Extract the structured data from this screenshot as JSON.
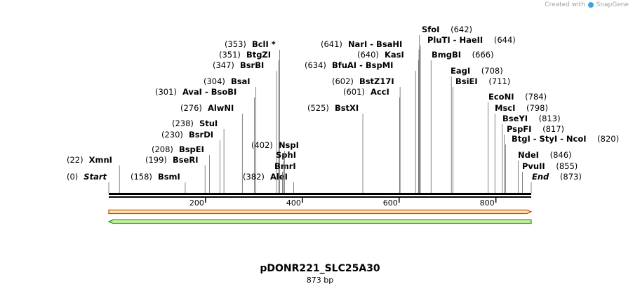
{
  "credit": {
    "prefix": "Created with",
    "brand": "SnapGene"
  },
  "plasmid": {
    "name": "pDONR221_SLC25A30",
    "size_label": "873 bp",
    "length": 873
  },
  "ruler": {
    "ticks": [
      200,
      400,
      600,
      800
    ]
  },
  "features": [
    {
      "name": "forward-feature",
      "direction": "forward",
      "start": 0,
      "end": 873,
      "fill": "#fbe7a6",
      "stroke": "#d24b17"
    },
    {
      "name": "reverse-feature",
      "direction": "reverse",
      "start": 0,
      "end": 873,
      "fill": "#c9f0a0",
      "stroke": "#2e9a1e"
    }
  ],
  "sites": [
    {
      "label": "Start",
      "pos": 0,
      "italic": true
    },
    {
      "label": "XmnI",
      "pos": 22
    },
    {
      "label": "BsmI",
      "pos": 158
    },
    {
      "label": "BseRI",
      "pos": 199
    },
    {
      "label": "BspEI",
      "pos": 208
    },
    {
      "label": "BsrDI",
      "pos": 230
    },
    {
      "label": "StuI",
      "pos": 238
    },
    {
      "label": "AlwNI",
      "pos": 276
    },
    {
      "label": "AvaI  - BsoBI",
      "pos": 301
    },
    {
      "label": "BsaI",
      "pos": 304
    },
    {
      "label": "BsrBI",
      "pos": 347
    },
    {
      "label": "BtgZI",
      "pos": 351
    },
    {
      "label": "BclI *",
      "pos": 353
    },
    {
      "label": "AleI",
      "pos": 382
    },
    {
      "label": "BmrI",
      "pos": null,
      "cut": 359
    },
    {
      "label": "SphI",
      "pos": null,
      "cut": 361
    },
    {
      "label": "NspI",
      "pos": 402,
      "cut": 363
    },
    {
      "label": "BstXI",
      "pos": 525
    },
    {
      "label": "AccI",
      "pos": 601
    },
    {
      "label": "BstZ17I",
      "pos": 602
    },
    {
      "label": "BfuAI  - BspMI",
      "pos": 634
    },
    {
      "label": "KasI",
      "pos": 640
    },
    {
      "label": "NarI  - BsaHI",
      "pos": 641
    },
    {
      "label": "SfoI",
      "pos": 642
    },
    {
      "label": "PluTI  - HaeII",
      "pos": 644
    },
    {
      "label": "BmgBI",
      "pos": 666
    },
    {
      "label": "EagI",
      "pos": 708
    },
    {
      "label": "BsiEI",
      "pos": 711
    },
    {
      "label": "EcoNI",
      "pos": 784
    },
    {
      "label": "MscI",
      "pos": 798
    },
    {
      "label": "BseYI",
      "pos": 813
    },
    {
      "label": "PspFI",
      "pos": 817
    },
    {
      "label": "BtgI  - StyI  - NcoI",
      "pos": 820
    },
    {
      "label": "NdeI",
      "pos": 846
    },
    {
      "label": "PvuII",
      "pos": 855
    },
    {
      "label": "End",
      "pos": 873,
      "italic": true
    }
  ]
}
